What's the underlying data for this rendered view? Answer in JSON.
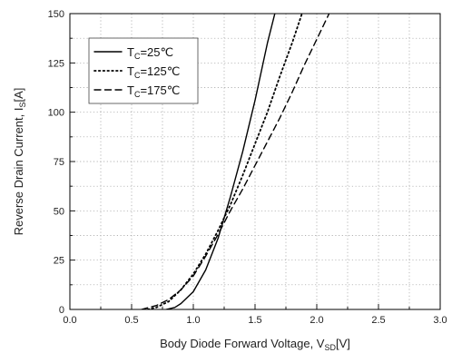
{
  "chart_data": {
    "type": "line",
    "xlabel": {
      "main": "Body Diode Forward Voltage, V",
      "sub": "SD",
      "unit": "[V]"
    },
    "ylabel": {
      "main": "Reverse Drain Current, I",
      "sub": "S",
      "unit": "[A]"
    },
    "xlim": [
      0,
      3
    ],
    "ylim": [
      0,
      150
    ],
    "x_ticks": [
      "0.0",
      "0.5",
      "1.0",
      "1.5",
      "2.0",
      "2.5",
      "3.0"
    ],
    "y_ticks": [
      "0",
      "25",
      "50",
      "75",
      "100",
      "125",
      "150"
    ],
    "grid": "dotted",
    "legend_position": "top-left",
    "series": [
      {
        "name": {
          "prefix": "T",
          "sub": "C",
          "value": "=25℃"
        },
        "style": "solid",
        "points": [
          [
            0.78,
            0
          ],
          [
            0.85,
            1
          ],
          [
            0.9,
            3
          ],
          [
            1.0,
            9
          ],
          [
            1.1,
            20
          ],
          [
            1.2,
            36
          ],
          [
            1.3,
            57
          ],
          [
            1.4,
            80
          ],
          [
            1.5,
            106
          ],
          [
            1.6,
            135
          ],
          [
            1.66,
            150
          ]
        ]
      },
      {
        "name": {
          "prefix": "T",
          "sub": "C",
          "value": "=125℃"
        },
        "style": "dotted",
        "points": [
          [
            0.63,
            0
          ],
          [
            0.7,
            1
          ],
          [
            0.8,
            4
          ],
          [
            0.9,
            10
          ],
          [
            1.0,
            18
          ],
          [
            1.1,
            28
          ],
          [
            1.2,
            40
          ],
          [
            1.3,
            53
          ],
          [
            1.4,
            68
          ],
          [
            1.5,
            84
          ],
          [
            1.6,
            100
          ],
          [
            1.7,
            118
          ],
          [
            1.8,
            135
          ],
          [
            1.88,
            150
          ]
        ]
      },
      {
        "name": {
          "prefix": "T",
          "sub": "C",
          "value": "=175℃"
        },
        "style": "dashed",
        "points": [
          [
            0.58,
            0
          ],
          [
            0.7,
            2
          ],
          [
            0.8,
            5
          ],
          [
            0.9,
            10
          ],
          [
            1.0,
            17
          ],
          [
            1.1,
            27
          ],
          [
            1.2,
            38
          ],
          [
            1.3,
            50
          ],
          [
            1.4,
            61
          ],
          [
            1.5,
            73
          ],
          [
            1.6,
            85
          ],
          [
            1.7,
            97
          ],
          [
            1.8,
            110
          ],
          [
            1.9,
            124
          ],
          [
            2.0,
            137
          ],
          [
            2.1,
            150
          ]
        ]
      }
    ]
  }
}
